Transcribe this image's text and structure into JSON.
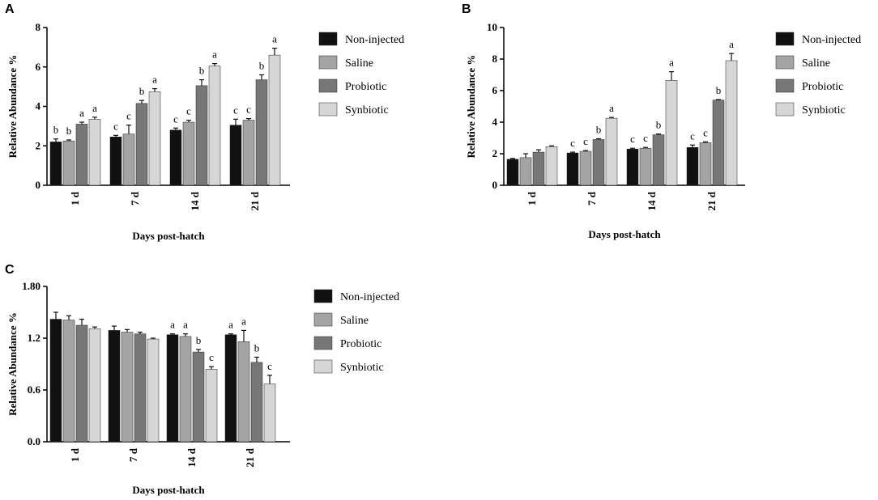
{
  "chart_data": [
    {
      "panel": "A",
      "type": "bar",
      "categories": [
        "1 d",
        "7 d",
        "14 d",
        "21 d"
      ],
      "xlabel": "Days post-hatch",
      "ylabel": "Relative Abundance %",
      "ylim": [
        0,
        8
      ],
      "yticks": [
        "0",
        "2",
        "4",
        "6",
        "8"
      ],
      "yticks_values": [
        0,
        2,
        4,
        6,
        8
      ],
      "legend": "right",
      "series": [
        {
          "name": "Non-injected",
          "color": "#111111",
          "values": [
            2.2,
            2.45,
            2.8,
            3.05
          ],
          "errors": [
            0.15,
            0.08,
            0.1,
            0.3
          ],
          "letters": [
            "b",
            "c",
            "c",
            "c"
          ]
        },
        {
          "name": "Saline",
          "color": "#a4a4a4",
          "values": [
            2.25,
            2.6,
            3.2,
            3.3
          ],
          "errors": [
            0.05,
            0.45,
            0.1,
            0.08
          ],
          "letters": [
            "b",
            "c",
            "c",
            "c"
          ]
        },
        {
          "name": "Probiotic",
          "color": "#777777",
          "values": [
            3.1,
            4.15,
            5.05,
            5.35
          ],
          "errors": [
            0.1,
            0.15,
            0.3,
            0.25
          ],
          "letters": [
            "a",
            "b",
            "b",
            "b"
          ]
        },
        {
          "name": "Synbiotic",
          "color": "#d6d6d6",
          "values": [
            3.35,
            4.75,
            6.05,
            6.6
          ],
          "errors": [
            0.1,
            0.15,
            0.12,
            0.35
          ],
          "letters": [
            "a",
            "a",
            "a",
            "a"
          ]
        }
      ]
    },
    {
      "panel": "B",
      "type": "bar",
      "categories": [
        "1 d",
        "7 d",
        "14 d",
        "21 d"
      ],
      "xlabel": "Days post-hatch",
      "ylabel": "Relative Abundance %",
      "ylim": [
        0,
        10
      ],
      "yticks": [
        "0",
        "2",
        "4",
        "6",
        "8",
        "10"
      ],
      "yticks_values": [
        0,
        2,
        4,
        6,
        8,
        10
      ],
      "legend": "right",
      "series": [
        {
          "name": "Non-injected",
          "color": "#111111",
          "values": [
            1.65,
            2.05,
            2.3,
            2.4
          ],
          "errors": [
            0.05,
            0.05,
            0.05,
            0.15
          ],
          "letters": [
            "",
            "c",
            "c",
            "c"
          ]
        },
        {
          "name": "Saline",
          "color": "#a4a4a4",
          "values": [
            1.75,
            2.15,
            2.35,
            2.7
          ],
          "errors": [
            0.25,
            0.05,
            0.05,
            0.05
          ],
          "letters": [
            "",
            "c",
            "c",
            "c"
          ]
        },
        {
          "name": "Probiotic",
          "color": "#777777",
          "values": [
            2.1,
            2.9,
            3.2,
            5.4
          ],
          "errors": [
            0.15,
            0.05,
            0.05,
            0.03
          ],
          "letters": [
            "",
            "b",
            "b",
            "b"
          ]
        },
        {
          "name": "Synbiotic",
          "color": "#d6d6d6",
          "values": [
            2.45,
            4.25,
            6.65,
            7.9
          ],
          "errors": [
            0.05,
            0.05,
            0.55,
            0.45
          ],
          "letters": [
            "",
            "a",
            "a",
            "a"
          ]
        }
      ]
    },
    {
      "panel": "C",
      "type": "bar",
      "categories": [
        "1 d",
        "7 d",
        "14 d",
        "21 d"
      ],
      "xlabel": "Days post-hatch",
      "ylabel": "Relative Abundance %",
      "ylim": [
        0,
        1.8
      ],
      "yticks": [
        "0.0",
        "0.6",
        "1.2",
        "1.80"
      ],
      "yticks_values": [
        0,
        0.6,
        1.2,
        1.8
      ],
      "legend": "right",
      "series": [
        {
          "name": "Non-injected",
          "color": "#111111",
          "values": [
            1.42,
            1.29,
            1.24,
            1.24
          ],
          "errors": [
            0.08,
            0.05,
            0.01,
            0.01
          ],
          "letters": [
            "",
            "",
            "a",
            "a"
          ]
        },
        {
          "name": "Saline",
          "color": "#a4a4a4",
          "values": [
            1.41,
            1.27,
            1.22,
            1.16
          ],
          "errors": [
            0.05,
            0.03,
            0.03,
            0.13
          ],
          "letters": [
            "",
            "",
            "a",
            "a"
          ]
        },
        {
          "name": "Probiotic",
          "color": "#777777",
          "values": [
            1.35,
            1.25,
            1.04,
            0.92
          ],
          "errors": [
            0.07,
            0.02,
            0.03,
            0.06
          ],
          "letters": [
            "",
            "",
            "b",
            "b"
          ]
        },
        {
          "name": "Synbiotic",
          "color": "#d6d6d6",
          "values": [
            1.31,
            1.19,
            0.84,
            0.67
          ],
          "errors": [
            0.02,
            0.01,
            0.03,
            0.1
          ],
          "letters": [
            "",
            "",
            "c",
            "c"
          ]
        }
      ]
    }
  ]
}
